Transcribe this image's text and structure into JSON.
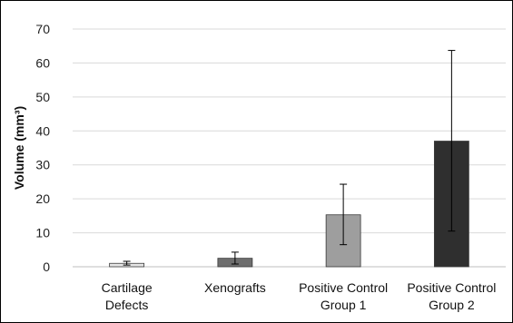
{
  "chart_data": {
    "type": "bar",
    "title": "",
    "xlabel": "",
    "ylabel": "Volume (mm³)",
    "ylim": [
      0,
      70
    ],
    "yticks": [
      0,
      10,
      20,
      30,
      40,
      50,
      60,
      70
    ],
    "grid": true,
    "categories": [
      [
        "Cartilage",
        "Defects"
      ],
      [
        "Xenografts"
      ],
      [
        "Positive Control",
        "Group 1"
      ],
      [
        "Positive Control",
        "Group 2"
      ]
    ],
    "values": [
      1.0,
      2.5,
      15.3,
      37.0
    ],
    "error_low": [
      0.5,
      0.8,
      6.5,
      10.5
    ],
    "error_high": [
      1.6,
      4.3,
      24.3,
      63.7
    ],
    "colors": [
      "#e6e6e6",
      "#6e6e6e",
      "#9e9e9e",
      "#2f2f2f"
    ]
  }
}
